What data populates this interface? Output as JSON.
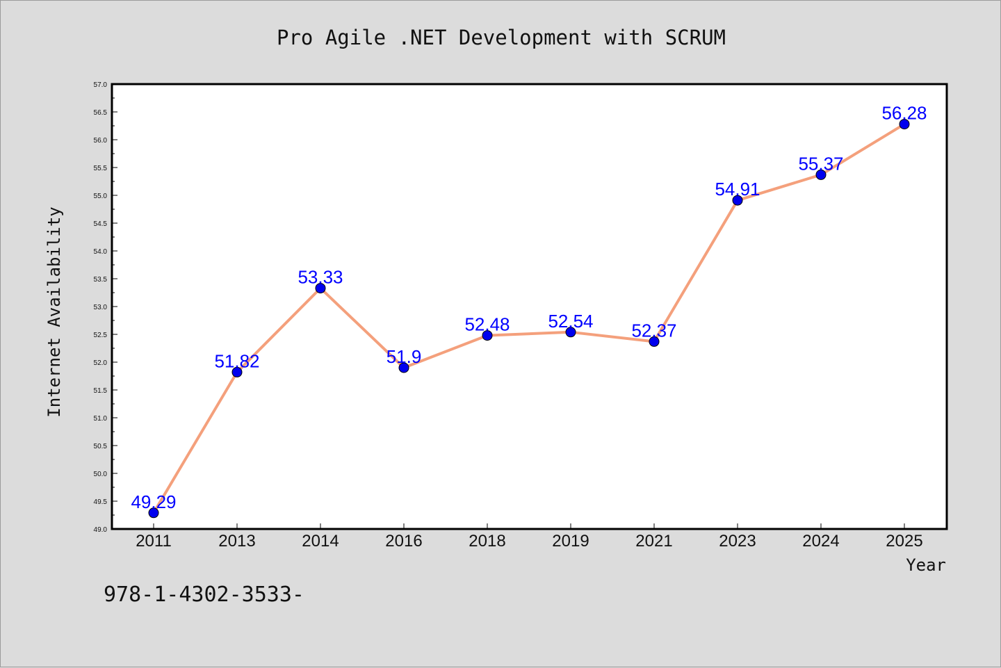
{
  "chart_data": {
    "type": "line",
    "title": "Pro Agile .NET Development with SCRUM",
    "xlabel": "Year",
    "ylabel": "Internet Availability",
    "categories": [
      "2011",
      "2013",
      "2014",
      "2016",
      "2018",
      "2019",
      "2021",
      "2023",
      "2024",
      "2025"
    ],
    "series": [
      {
        "values": [
          49.29,
          51.82,
          53.33,
          51.9,
          52.48,
          52.54,
          52.37,
          54.91,
          55.37,
          56.28
        ],
        "labels": [
          "49.29",
          "51.82",
          "53.33",
          "51.9",
          "52.48",
          "52.54",
          "52.37",
          "54.91",
          "55.37",
          "56.28"
        ],
        "line_color": "#f4a07c",
        "marker_color": "#0000ee"
      }
    ],
    "ylim": [
      49.0,
      57.0
    ],
    "yticks": [
      "49.0",
      "49.5",
      "50.0",
      "50.5",
      "51.0",
      "51.5",
      "52.0",
      "52.5",
      "53.0",
      "53.5",
      "54.0",
      "54.5",
      "55.0",
      "55.5",
      "56.0",
      "56.5",
      "57.0"
    ],
    "grid": false,
    "legend": "none",
    "label_color": "#0000ff"
  },
  "footer_text": "978-1-4302-3533-"
}
